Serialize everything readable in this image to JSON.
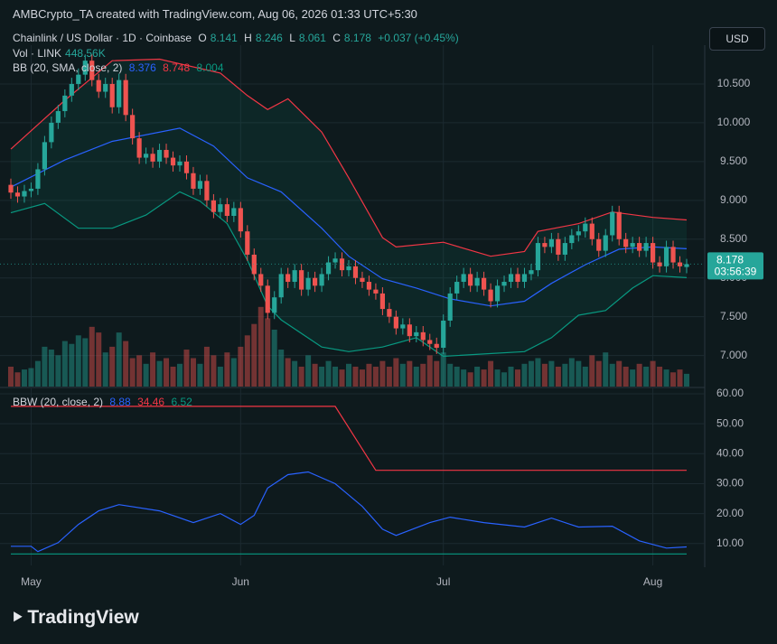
{
  "chart_data": {
    "type": "candlestick",
    "title": "AMBCrypto_TA created with TradingView.com, Aug 06, 2026 01:33 UTC+5:30",
    "symbol": "Chainlink / US Dollar · 1D · Coinbase",
    "ohlc_labels": [
      "O",
      "H",
      "L",
      "C"
    ],
    "change_label": "+0.037 (+0.45%)",
    "currency": "USD",
    "countdown": "03:56:39",
    "logo": "TradingView",
    "up_color": "#26a69a",
    "down_color": "#ef5350",
    "categories": [
      null,
      null,
      null,
      "May",
      null,
      null,
      null,
      null,
      null,
      null,
      null,
      null,
      null,
      null,
      null,
      null,
      null,
      null,
      null,
      null,
      null,
      null,
      null,
      null,
      null,
      null,
      null,
      null,
      null,
      null,
      null,
      null,
      null,
      null,
      "Jun",
      null,
      null,
      null,
      null,
      null,
      null,
      null,
      null,
      null,
      null,
      null,
      null,
      null,
      null,
      null,
      null,
      null,
      null,
      null,
      null,
      null,
      null,
      null,
      null,
      null,
      null,
      null,
      null,
      null,
      "Jul",
      null,
      null,
      null,
      null,
      null,
      null,
      null,
      null,
      null,
      null,
      null,
      null,
      null,
      null,
      null,
      null,
      null,
      null,
      null,
      null,
      null,
      null,
      null,
      null,
      null,
      null,
      null,
      null,
      null,
      null,
      "Aug",
      null,
      null,
      null,
      null,
      null
    ],
    "open": [
      9.2,
      9.1,
      9.05,
      9.12,
      9.15,
      9.4,
      9.75,
      10.0,
      10.15,
      10.35,
      10.5,
      10.62,
      10.8,
      10.55,
      10.4,
      10.5,
      10.2,
      10.55,
      10.1,
      9.8,
      9.55,
      9.6,
      9.5,
      9.65,
      9.55,
      9.45,
      9.5,
      9.35,
      9.15,
      9.25,
      9.0,
      8.85,
      8.95,
      8.8,
      8.9,
      8.6,
      8.3,
      8.05,
      7.9,
      7.55,
      7.75,
      8.05,
      7.95,
      8.1,
      7.85,
      8.0,
      7.9,
      8.05,
      8.2,
      8.25,
      8.1,
      8.15,
      8.0,
      7.95,
      7.85,
      7.8,
      7.6,
      7.5,
      7.35,
      7.4,
      7.25,
      7.3,
      7.2,
      7.15,
      7.1,
      7.45,
      7.8,
      7.95,
      8.05,
      7.9,
      8.0,
      7.85,
      7.7,
      7.9,
      7.95,
      8.05,
      7.95,
      8.05,
      8.1,
      8.45,
      8.4,
      8.5,
      8.3,
      8.45,
      8.55,
      8.6,
      8.7,
      8.5,
      8.35,
      8.55,
      8.85,
      8.5,
      8.4,
      8.45,
      8.35,
      8.45,
      8.2,
      8.15,
      8.4,
      8.2,
      8.141
    ],
    "high": [
      9.28,
      9.18,
      9.2,
      9.23,
      9.48,
      9.83,
      10.08,
      10.23,
      10.43,
      10.58,
      10.7,
      10.88,
      10.88,
      10.63,
      10.58,
      10.58,
      10.63,
      10.63,
      10.18,
      9.88,
      9.68,
      9.68,
      9.73,
      9.73,
      9.63,
      9.58,
      9.58,
      9.43,
      9.33,
      9.33,
      9.08,
      9.03,
      9.03,
      8.98,
      8.98,
      8.68,
      8.38,
      8.13,
      7.98,
      7.83,
      8.13,
      8.13,
      8.18,
      8.18,
      8.08,
      8.08,
      8.13,
      8.28,
      8.33,
      8.33,
      8.23,
      8.23,
      8.08,
      8.03,
      7.93,
      7.88,
      7.68,
      7.58,
      7.48,
      7.48,
      7.38,
      7.38,
      7.28,
      7.23,
      7.53,
      7.88,
      8.03,
      8.13,
      8.13,
      8.08,
      8.08,
      7.93,
      7.98,
      8.03,
      8.13,
      8.13,
      8.13,
      8.18,
      8.53,
      8.53,
      8.58,
      8.58,
      8.53,
      8.63,
      8.68,
      8.78,
      8.78,
      8.58,
      8.63,
      8.93,
      8.93,
      8.58,
      8.53,
      8.53,
      8.53,
      8.53,
      8.28,
      8.48,
      8.48,
      8.28,
      8.246
    ],
    "low": [
      9.02,
      8.97,
      8.97,
      9.04,
      9.07,
      9.32,
      9.67,
      9.92,
      10.07,
      10.27,
      10.42,
      10.54,
      10.47,
      10.32,
      10.32,
      10.12,
      10.12,
      10.02,
      9.72,
      9.47,
      9.47,
      9.42,
      9.42,
      9.47,
      9.37,
      9.37,
      9.27,
      9.07,
      9.07,
      8.92,
      8.77,
      8.77,
      8.72,
      8.72,
      8.52,
      8.22,
      7.97,
      7.82,
      7.47,
      7.47,
      7.67,
      7.87,
      7.87,
      7.77,
      7.77,
      7.82,
      7.82,
      7.97,
      8.12,
      8.02,
      8.02,
      7.92,
      7.87,
      7.77,
      7.72,
      7.52,
      7.42,
      7.27,
      7.27,
      7.17,
      7.17,
      7.12,
      7.07,
      7.02,
      7.02,
      7.37,
      7.72,
      7.87,
      7.82,
      7.82,
      7.77,
      7.62,
      7.62,
      7.82,
      7.87,
      7.87,
      7.87,
      7.97,
      8.02,
      8.32,
      8.32,
      8.22,
      8.22,
      8.37,
      8.47,
      8.52,
      8.42,
      8.27,
      8.27,
      8.47,
      8.42,
      8.32,
      8.32,
      8.27,
      8.27,
      8.12,
      8.07,
      8.07,
      8.12,
      8.07,
      8.061
    ],
    "close": [
      9.1,
      9.05,
      9.12,
      9.15,
      9.4,
      9.75,
      10.0,
      10.15,
      10.35,
      10.5,
      10.62,
      10.8,
      10.55,
      10.4,
      10.5,
      10.2,
      10.55,
      10.1,
      9.8,
      9.55,
      9.6,
      9.5,
      9.65,
      9.55,
      9.45,
      9.5,
      9.35,
      9.15,
      9.25,
      9.0,
      8.85,
      8.95,
      8.8,
      8.9,
      8.6,
      8.3,
      8.05,
      7.9,
      7.55,
      7.75,
      8.05,
      7.95,
      8.1,
      7.85,
      8.0,
      7.9,
      8.05,
      8.2,
      8.25,
      8.1,
      8.15,
      8.0,
      7.95,
      7.85,
      7.8,
      7.6,
      7.5,
      7.35,
      7.4,
      7.25,
      7.3,
      7.2,
      7.15,
      7.1,
      7.45,
      7.8,
      7.95,
      8.05,
      7.9,
      8.0,
      7.85,
      7.7,
      7.9,
      7.95,
      8.05,
      7.95,
      8.05,
      8.1,
      8.45,
      8.4,
      8.5,
      8.3,
      8.45,
      8.55,
      8.6,
      8.7,
      8.5,
      8.35,
      8.55,
      8.85,
      8.5,
      8.4,
      8.45,
      8.35,
      8.45,
      8.2,
      8.15,
      8.4,
      8.2,
      8.15,
      8.178
    ],
    "ylim": [
      6.6,
      11.0
    ],
    "yticks": [
      {
        "value": 7.0,
        "label": "7.000"
      },
      {
        "value": 7.5,
        "label": "7.500"
      },
      {
        "value": 8.0,
        "label": "8.000"
      },
      {
        "value": 8.5,
        "label": "8.500"
      },
      {
        "value": 9.0,
        "label": "9.000"
      },
      {
        "value": 9.5,
        "label": "9.500"
      },
      {
        "value": 10.0,
        "label": "10.000"
      },
      {
        "value": 10.5,
        "label": "10.500"
      }
    ],
    "grid": true,
    "volume": {
      "name": "Vol · LINK",
      "last_label": "448.56K",
      "ylim": [
        0,
        12000000
      ],
      "values": [
        700000,
        500000,
        600000,
        650000,
        900000,
        1400000,
        1300000,
        1100000,
        1600000,
        1500000,
        1800000,
        1700000,
        2100000,
        1900000,
        1200000,
        1400000,
        1900000,
        1600000,
        1000000,
        1100000,
        800000,
        1200000,
        900000,
        1000000,
        700000,
        800000,
        1300000,
        1000000,
        800000,
        1400000,
        1100000,
        700000,
        1200000,
        1000000,
        1400000,
        1800000,
        2200000,
        2800000,
        2400000,
        2000000,
        1300000,
        1000000,
        900000,
        700000,
        1100000,
        800000,
        700000,
        900000,
        700000,
        600000,
        800000,
        700000,
        600000,
        800000,
        700000,
        900000,
        700000,
        1000000,
        800000,
        900000,
        700000,
        800000,
        1100000,
        900000,
        1200000,
        800000,
        700000,
        600000,
        500000,
        700000,
        600000,
        900000,
        600000,
        500000,
        700000,
        600000,
        800000,
        900000,
        1000000,
        800000,
        900000,
        700000,
        800000,
        1000000,
        900000,
        700000,
        1100000,
        900000,
        1200000,
        800000,
        900000,
        700000,
        600000,
        800000,
        700000,
        900000,
        700000,
        600000,
        500000,
        600000,
        448560
      ]
    },
    "bb": {
      "label": "BB (20, SMA, close, 2)",
      "fill": "rgba(8,153,129,0.10)",
      "series": [
        {
          "color": "#2962ff",
          "x": [
            0,
            8,
            15,
            25,
            30,
            35,
            40,
            46,
            50,
            55,
            60,
            65,
            71,
            76,
            80,
            85,
            90,
            95,
            100
          ],
          "values": [
            9.17,
            9.52,
            9.76,
            9.93,
            9.7,
            9.29,
            9.11,
            8.64,
            8.28,
            7.99,
            7.87,
            7.73,
            7.64,
            7.7,
            7.93,
            8.17,
            8.37,
            8.4,
            8.376
          ]
        },
        {
          "color": "#f23645",
          "x": [
            0,
            8,
            12,
            15,
            22,
            31,
            35,
            38,
            41,
            46,
            50,
            55,
            57,
            64,
            71,
            76,
            78,
            84,
            89,
            95,
            100
          ],
          "values": [
            9.66,
            10.29,
            10.58,
            10.8,
            10.82,
            10.64,
            10.35,
            10.17,
            10.31,
            9.88,
            9.29,
            8.52,
            8.4,
            8.46,
            8.28,
            8.34,
            8.6,
            8.7,
            8.85,
            8.78,
            8.748
          ]
        },
        {
          "color": "#089981",
          "x": [
            0,
            5,
            10,
            15,
            20,
            25,
            28,
            32,
            35,
            38,
            40,
            46,
            50,
            55,
            60,
            64,
            70,
            76,
            80,
            84,
            88,
            92,
            95,
            100
          ],
          "values": [
            8.84,
            8.96,
            8.64,
            8.64,
            8.81,
            9.11,
            8.99,
            8.7,
            8.23,
            7.64,
            7.46,
            7.11,
            7.05,
            7.11,
            7.23,
            6.99,
            7.02,
            7.05,
            7.23,
            7.52,
            7.58,
            7.87,
            8.03,
            8.004
          ]
        }
      ]
    },
    "bbw": {
      "label": "BBW (20, close, 2)",
      "ylim": [
        2.7,
        61.8
      ],
      "yticks": [
        {
          "value": 10,
          "label": "10.00"
        },
        {
          "value": 20,
          "label": "20.00"
        },
        {
          "value": 30,
          "label": "30.00"
        },
        {
          "value": 40,
          "label": "40.00"
        },
        {
          "value": 50,
          "label": "50.00"
        },
        {
          "value": 60,
          "label": "60.00"
        }
      ],
      "series": [
        {
          "color": "#2962ff",
          "x": [
            0,
            3,
            4,
            7,
            10,
            13,
            16,
            22,
            27,
            31,
            34,
            36,
            38,
            41,
            44,
            48,
            52,
            55,
            57,
            62,
            65,
            70,
            76,
            80,
            84,
            89,
            93,
            97,
            100
          ],
          "values": [
            9.1,
            9.1,
            7.3,
            10.3,
            16.4,
            20.9,
            23,
            20.9,
            17,
            20,
            16.4,
            19.4,
            28.5,
            33,
            33.9,
            30,
            22.4,
            14.8,
            12.7,
            17,
            18.8,
            17,
            15.5,
            18.5,
            15.5,
            15.8,
            10.9,
            8.5,
            8.88
          ]
        },
        {
          "color": "#f23645",
          "x": [
            0,
            48,
            54,
            100
          ],
          "values": [
            55.8,
            55.8,
            34.46,
            34.46
          ]
        },
        {
          "color": "#089981",
          "x": [
            0,
            100
          ],
          "values": [
            6.52,
            6.52
          ]
        }
      ]
    }
  }
}
